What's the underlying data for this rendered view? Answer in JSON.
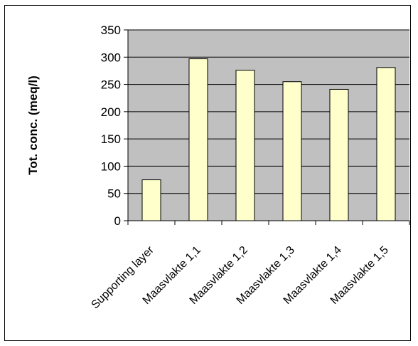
{
  "chart_data": {
    "type": "bar",
    "title": "",
    "xlabel": "",
    "ylabel": "Tot. conc. (meq/l)",
    "categories": [
      "Supporting layer",
      "Maasvlakte 1,1",
      "Maasvlakte 1,2",
      "Maasvlakte 1,3",
      "Maasvlakte 1,4",
      "Maasvlakte 1,5"
    ],
    "values": [
      75,
      297,
      276,
      255,
      241,
      281
    ],
    "ylim": [
      0,
      350
    ],
    "yticks": [
      0,
      50,
      100,
      150,
      200,
      250,
      300,
      350
    ],
    "grid": true,
    "legend": "none",
    "colors": {
      "plot_background": "#c0c0c0",
      "bar_fill": "#ffffcc",
      "bar_stroke": "#000000",
      "gridline": "#000000"
    }
  }
}
